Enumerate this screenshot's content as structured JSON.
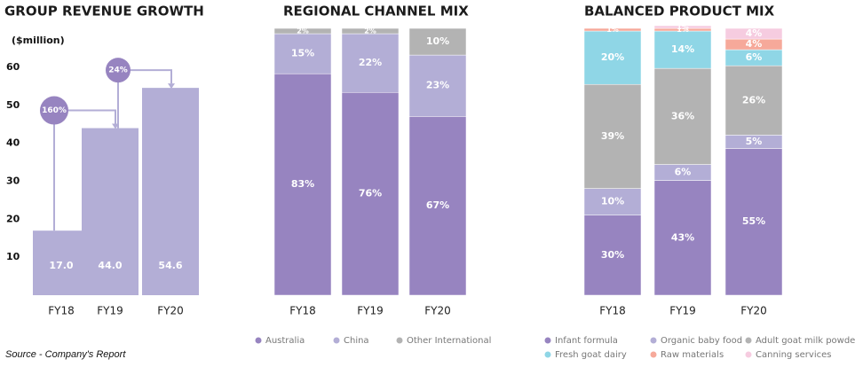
{
  "chart_data": [
    {
      "type": "bar",
      "title": "GROUP REVENUE GROWTH",
      "ylabel": "($million)",
      "ylim": [
        0,
        60
      ],
      "yticks": [
        10,
        20,
        30,
        40,
        50,
        60
      ],
      "categories": [
        "FY18",
        "FY19",
        "FY20"
      ],
      "values": [
        17.0,
        44.0,
        54.6
      ],
      "value_labels": [
        "17.0",
        "44.0",
        "54.6"
      ],
      "annotations": [
        {
          "text": "160%",
          "from": "FY18",
          "to": "FY19"
        },
        {
          "text": "24%",
          "from": "FY19",
          "to": "FY20"
        }
      ],
      "colors": {
        "bar": "#b3aed6",
        "bubble": "#9784c0",
        "text": "#ffffff"
      }
    },
    {
      "type": "bar",
      "stacked": true,
      "title": "REGIONAL CHANNEL MIX",
      "ylim": [
        0,
        100
      ],
      "categories": [
        "FY18",
        "FY19",
        "FY20"
      ],
      "series": [
        {
          "name": "Australia",
          "values": [
            83,
            76,
            67
          ],
          "labels": [
            "83%",
            "76%",
            "67%"
          ],
          "color": "#9784c0",
          "label_color": "#ffffff"
        },
        {
          "name": "China",
          "values": [
            15,
            22,
            23
          ],
          "labels": [
            "15%",
            "22%",
            "23%"
          ],
          "color": "#b3aed6",
          "label_color": "#ffffff"
        },
        {
          "name": "Other International",
          "values": [
            2,
            2,
            10
          ],
          "labels": [
            "2%",
            "2%",
            "10%"
          ],
          "color": "#b3b3b3",
          "label_color": "#ffffff"
        }
      ]
    },
    {
      "type": "bar",
      "stacked": true,
      "title": "BALANCED PRODUCT MIX",
      "ylim": [
        0,
        100
      ],
      "categories": [
        "FY18",
        "FY19",
        "FY20"
      ],
      "series": [
        {
          "name": "Infant formula",
          "values": [
            30,
            43,
            55
          ],
          "labels": [
            "30%",
            "43%",
            "55%"
          ],
          "color": "#9784c0",
          "label_color": "#ffffff"
        },
        {
          "name": "Organic baby food",
          "values": [
            10,
            6,
            5
          ],
          "labels": [
            "10%",
            "6%",
            "5%"
          ],
          "color": "#b3aed6",
          "label_color": "#ffffff"
        },
        {
          "name": "Adult goat milk powder",
          "values": [
            39,
            36,
            26
          ],
          "labels": [
            "39%",
            "36%",
            "26%"
          ],
          "color": "#b3b3b3",
          "label_color": "#ffffff"
        },
        {
          "name": "Fresh goat dairy",
          "values": [
            20,
            14,
            6
          ],
          "labels": [
            "20%",
            "14%",
            "6%"
          ],
          "color": "#8fd6e6",
          "label_color": "#ffffff"
        },
        {
          "name": "Raw materials",
          "values": [
            1,
            1,
            4
          ],
          "labels": [
            "1%",
            "1%",
            "4%"
          ],
          "color": "#f6a99a",
          "label_color": "#ffffff"
        },
        {
          "name": "Canning services",
          "values": [
            0,
            1,
            4
          ],
          "labels": [
            "",
            "1%",
            "4%"
          ],
          "color": "#f6cce0",
          "label_color": "#ffffff"
        }
      ]
    }
  ],
  "source_note": "Source - Company's Report"
}
